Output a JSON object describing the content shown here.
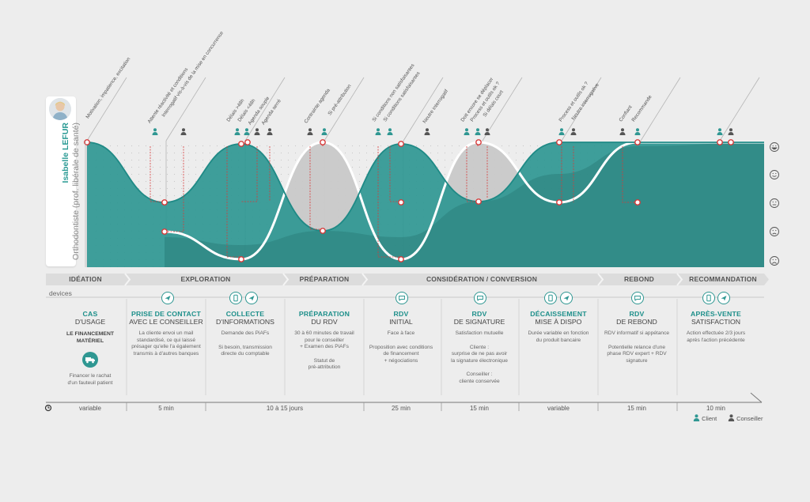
{
  "persona": {
    "name": "Isabelle LEFUR",
    "role": "Orthodontiste (prof. libérale de santé)"
  },
  "phases": [
    "IDÉATION",
    "EXPLORATION",
    "PRÉPARATION",
    "CONSIDÉRATION / CONVERSION",
    "REBOND",
    "RECOMMANDATION"
  ],
  "devices_label": "devices",
  "steps": [
    {
      "title": "CAS",
      "subtitle": "D'USAGE",
      "strong": "LE FINANCEMENT\nMATÉRIEL",
      "desc": "Financer le rachat\nd'un fauteuil patient"
    },
    {
      "title": "PRISE DE CONTACT",
      "subtitle": "AVEC LE CONSEILLER",
      "desc": "La cliente envoi un mail\nstandardisé, ce qui laissé\nprésager qu'elle l'a également\ntransmis à d'autres banques"
    },
    {
      "title": "COLLECTE",
      "subtitle": "D'INFORMATIONS",
      "desc": "Demande des PiAFs",
      "desc2": "Si besoin, transmission\ndirecte du comptable"
    },
    {
      "title": "PRÉPARATION",
      "subtitle": "DU RDV",
      "desc": "30 à 60 minutes de travail\npour le conseiller\n+ Examen des PiAFs",
      "desc2": "Statut de\npré-attribution"
    },
    {
      "title": "RDV",
      "subtitle": "INITIAL",
      "desc": "Face à face",
      "desc2": "Proposition avec conditions\nde financement\n+ négociations"
    },
    {
      "title": "RDV",
      "subtitle": "DE SIGNATURE",
      "desc": "Satisfaction mutuelle",
      "desc2": "Cliente :\nsurprise de ne pas avoir\nla signature électronique",
      "desc3": "Conseiller :\ncliente conservée"
    },
    {
      "title": "DÉCAISSEMENT",
      "subtitle": "MISE À DISPO",
      "desc": "Durée variable en fonction\ndu produit bancaire"
    },
    {
      "title": "RDV",
      "subtitle": "DE REBOND",
      "desc": "RDV informatif si appétance",
      "desc2": "Potentielle relance d'une\nphase RDV expert + RDV\nsignature"
    },
    {
      "title": "APRÈS-VENTE",
      "subtitle": "SATISFACTION",
      "desc": "Action effectuée 2/3 jours\naprès l'action précédente"
    }
  ],
  "durations": [
    "variable",
    "5 min",
    "10 à 15 jours",
    "25 min",
    "15 min",
    "variable",
    "15 min",
    "10 min"
  ],
  "legend": {
    "client": "Client",
    "conseiller": "Conseiller"
  },
  "client_labels": [
    "Motivation, impatience, excitation",
    "Attente réactivité et conditions",
    "Interrogatif vis-à-vis de la mise en concurrence",
    "Délais >48h",
    "Délais <48h",
    "Agenda souple",
    "Agenda serré",
    "Contrainte agenda",
    "Si pré-attribution",
    "Si conditions non satisfaisantes",
    "Si conditions satisfaisantes",
    "Neutre interrogatif",
    "Doit encore se déplacer",
    "Process et outils ok ?",
    "Si délais court",
    "Process et outils ok ?",
    "Neutre interrogative",
    "Confiant",
    "Recommande"
  ],
  "colors": {
    "teal": "#2f9792",
    "teal_dark": "#2b7f7c",
    "grey_area": "#c9c9c9",
    "red": "#d63a3a",
    "phase_bg": "#dcdcdc",
    "accent_text": "#1d8f8a"
  },
  "icons": [
    "user-icon",
    "smiley-very-happy-icon",
    "smiley-happy-icon",
    "smiley-neutral-icon",
    "smiley-sad-icon",
    "smiley-very-sad-icon",
    "send-icon",
    "mobile-icon",
    "chat-icon",
    "truck-icon",
    "clock-icon"
  ]
}
